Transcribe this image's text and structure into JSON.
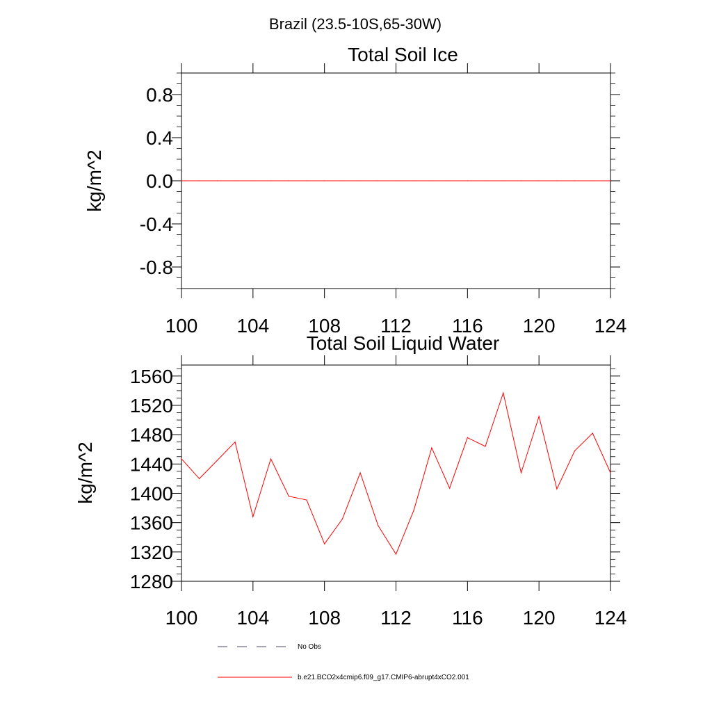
{
  "figure_title": "Brazil (23.5-10S,65-30W)",
  "chart_data": [
    {
      "type": "line",
      "title": "Total Soil Ice",
      "xlabel": "",
      "ylabel": "kg/m^2",
      "xlim": [
        100,
        124
      ],
      "ylim": [
        -1.0,
        1.0
      ],
      "xticks": [
        "100",
        "104",
        "108",
        "112",
        "116",
        "120",
        "124"
      ],
      "yticks": [
        "-0.8",
        "-0.4",
        "0.0",
        "0.4",
        "0.8"
      ],
      "series": [
        {
          "name": "b.e21.BCO2x4cmip6.f09_g17.CMIP6-abrupt4xCO2.001",
          "color": "#ff0000",
          "x": [
            100,
            101,
            102,
            103,
            104,
            105,
            106,
            107,
            108,
            109,
            110,
            111,
            112,
            113,
            114,
            115,
            116,
            117,
            118,
            119,
            120,
            121,
            122,
            123,
            124
          ],
          "values": [
            0,
            0,
            0,
            0,
            0,
            0,
            0,
            0,
            0,
            0,
            0,
            0,
            0,
            0,
            0,
            0,
            0,
            0,
            0,
            0,
            0,
            0,
            0,
            0,
            0
          ]
        }
      ]
    },
    {
      "type": "line",
      "title": "Total Soil Liquid Water",
      "xlabel": "",
      "ylabel": "kg/m^2",
      "xlim": [
        100,
        124
      ],
      "ylim": [
        1280,
        1575
      ],
      "xticks": [
        "100",
        "104",
        "108",
        "112",
        "116",
        "120",
        "124"
      ],
      "yticks": [
        "1280",
        "1320",
        "1360",
        "1400",
        "1440",
        "1480",
        "1520",
        "1560"
      ],
      "series": [
        {
          "name": "b.e21.BCO2x4cmip6.f09_g17.CMIP6-abrupt4xCO2.001",
          "color": "#ff0000",
          "x": [
            100,
            101,
            102,
            103,
            104,
            105,
            106,
            107,
            108,
            109,
            110,
            111,
            112,
            113,
            114,
            115,
            116,
            117,
            118,
            119,
            120,
            121,
            122,
            123,
            124
          ],
          "values": [
            1447,
            1420,
            1445,
            1470,
            1368,
            1447,
            1396,
            1391,
            1331,
            1365,
            1428,
            1356,
            1317,
            1377,
            1462,
            1407,
            1476,
            1464,
            1537,
            1428,
            1505,
            1406,
            1458,
            1482,
            1428
          ]
        }
      ]
    }
  ],
  "legend": [
    {
      "label": "No Obs",
      "style": "dashed",
      "color": "#4a4a6a"
    },
    {
      "label": "b.e21.BCO2x4cmip6.f09_g17.CMIP6-abrupt4xCO2.001",
      "style": "solid",
      "color": "#ff0000"
    }
  ]
}
